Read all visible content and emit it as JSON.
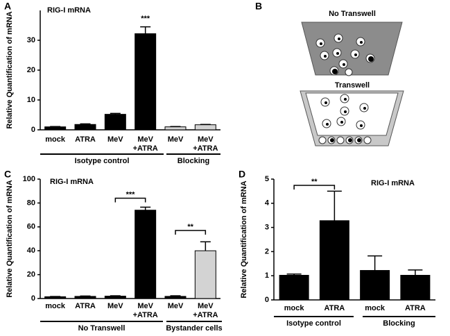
{
  "chart_data": [
    {
      "type": "bar",
      "panel_label": "A",
      "title": "RIG-I mRNA",
      "y_label": "Relative Quantification of mRNA",
      "categories": [
        [
          "mock"
        ],
        [
          "ATRA"
        ],
        [
          "MeV"
        ],
        [
          "MeV",
          "+ATRA"
        ],
        [
          "MeV"
        ],
        [
          "MeV",
          "+ATRA"
        ]
      ],
      "values": [
        1,
        1.8,
        5.2,
        32.2,
        1,
        1.7
      ],
      "errors": [
        0.1,
        0.2,
        0.3,
        2.3,
        0.1,
        0.1
      ],
      "colors": [
        "#000000",
        "#000000",
        "#000000",
        "#000000",
        "#d3d3d3",
        "#d3d3d3"
      ],
      "ylim": [
        0,
        40
      ],
      "yticks": [
        0,
        10,
        20,
        30
      ],
      "groups": [
        "Isotype control",
        "Blocking"
      ],
      "annotations": [
        "***"
      ]
    },
    {
      "type": "bar",
      "panel_label": "C",
      "title": "RIG-I mRNA",
      "y_label": "Relative Quantification of mRNA",
      "categories": [
        [
          "mock"
        ],
        [
          "ATRA"
        ],
        [
          "MeV"
        ],
        [
          "MeV",
          "+ATRA"
        ],
        [
          "MeV"
        ],
        [
          "MeV",
          "+ATRA"
        ]
      ],
      "values": [
        1.5,
        1.8,
        2,
        74,
        1.8,
        40
      ],
      "errors": [
        0.2,
        0.3,
        0.3,
        2.5,
        0.5,
        7.5
      ],
      "colors": [
        "#000000",
        "#000000",
        "#000000",
        "#000000",
        "#000000",
        "#d3d3d3"
      ],
      "ylim": [
        0,
        100
      ],
      "yticks": [
        0,
        20,
        40,
        60,
        80,
        100
      ],
      "groups": [
        "No Transwell",
        "Bystander cells"
      ],
      "annotations": [
        "***",
        "**"
      ]
    },
    {
      "type": "bar",
      "panel_label": "D",
      "title": "RIG-I mRNA",
      "y_label": "Relative Quantification of mRNA",
      "categories": [
        [
          "mock"
        ],
        [
          "ATRA"
        ],
        [
          "mock"
        ],
        [
          "ATRA"
        ]
      ],
      "values": [
        1.02,
        3.28,
        1.22,
        1.02
      ],
      "errors": [
        0.05,
        1.22,
        0.6,
        0.22
      ],
      "colors": [
        "#000000",
        "#000000",
        "#000000",
        "#000000"
      ],
      "ylim": [
        0,
        5
      ],
      "yticks": [
        0,
        1,
        2,
        3,
        4,
        5
      ],
      "groups": [
        "Isotype control",
        "Blocking"
      ],
      "annotations": [
        "**"
      ]
    }
  ],
  "diagram": {
    "panel_label": "B",
    "top_label": "No Transwell",
    "bottom_label": "Transwell"
  }
}
